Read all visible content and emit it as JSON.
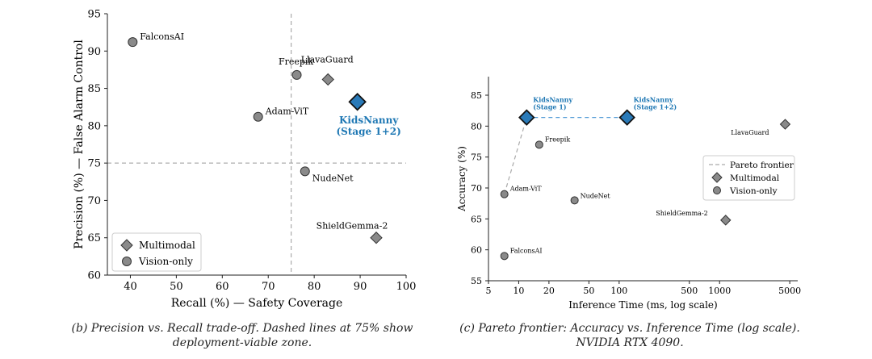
{
  "colors": {
    "multimodal": "#8a8a8a",
    "vision_only": "#8a8a8a",
    "highlight": "#2a7ab8",
    "highlight_text": "#1f78b4",
    "axis": "#222222",
    "refline": "#999999",
    "pareto": "#aaaaaa",
    "pareto_highlight": "#5aa0d8"
  },
  "captions": {
    "b": "(b) Precision vs. Recall trade-off. Dashed lines at 75% show deployment-viable zone.",
    "c": "(c) Pareto frontier: Accuracy vs. Inference Time (log scale). NVIDIA RTX 4090."
  },
  "chart_data": [
    {
      "type": "scatter",
      "id": "b",
      "xlabel": "Recall (%) — Safety Coverage",
      "ylabel": "Precision (%) — False Alarm Control",
      "xlim": [
        35,
        100
      ],
      "ylim": [
        60,
        95
      ],
      "xticks": [
        40,
        50,
        60,
        70,
        80,
        90,
        100
      ],
      "yticks": [
        60,
        65,
        70,
        75,
        80,
        85,
        90,
        95
      ],
      "ref_lines": {
        "x": 75,
        "y": 75
      },
      "legend": {
        "position": "bottom-left",
        "entries": [
          {
            "label": "Multimodal",
            "marker": "diamond"
          },
          {
            "label": "Vision-only",
            "marker": "circle"
          }
        ]
      },
      "points": [
        {
          "label": "FalconsAI",
          "x": 40.5,
          "y": 91.2,
          "marker": "circle"
        },
        {
          "label": "Freepik",
          "x": 76.2,
          "y": 86.8,
          "marker": "circle"
        },
        {
          "label": "LlavaGuard",
          "x": 83.0,
          "y": 86.2,
          "marker": "diamond"
        },
        {
          "label": "Adam-ViT",
          "x": 67.8,
          "y": 81.2,
          "marker": "circle"
        },
        {
          "label": "KidsNanny (Stage 1+2)",
          "label_lines": [
            "KidsNanny",
            "(Stage 1+2)"
          ],
          "x": 89.4,
          "y": 83.2,
          "marker": "diamond",
          "highlight": true
        },
        {
          "label": "NudeNet",
          "x": 78.0,
          "y": 73.9,
          "marker": "circle"
        },
        {
          "label": "ShieldGemma-2",
          "x": 93.5,
          "y": 65.0,
          "marker": "diamond"
        }
      ]
    },
    {
      "type": "scatter",
      "id": "c",
      "xlabel": "Inference Time (ms, log scale)",
      "ylabel": "Accuracy (%)",
      "xscale": "log",
      "xlim": [
        5,
        6000
      ],
      "ylim": [
        55,
        88
      ],
      "xticks": [
        5,
        10,
        20,
        50,
        100,
        500,
        1000,
        5000
      ],
      "yticks": [
        55,
        60,
        65,
        70,
        75,
        80,
        85
      ],
      "legend": {
        "position": "center-right",
        "entries": [
          {
            "label": "Pareto frontier",
            "marker": "dashed-line"
          },
          {
            "label": "Multimodal",
            "marker": "diamond"
          },
          {
            "label": "Vision-only",
            "marker": "circle"
          }
        ]
      },
      "pareto_frontier": [
        {
          "x": 7.2,
          "y": 69.0
        },
        {
          "x": 12.0,
          "y": 81.4
        },
        {
          "x": 120,
          "y": 81.4
        }
      ],
      "points": [
        {
          "label": "KidsNanny (Stage 1)",
          "label_lines": [
            "KidsNanny",
            "(Stage 1)"
          ],
          "x": 12.0,
          "y": 81.4,
          "marker": "diamond",
          "highlight": true
        },
        {
          "label": "KidsNanny (Stage 1+2)",
          "label_lines": [
            "KidsNanny",
            "(Stage 1+2)"
          ],
          "x": 120,
          "y": 81.4,
          "marker": "diamond",
          "highlight": true
        },
        {
          "label": "LlavaGuard",
          "x": 4500,
          "y": 80.3,
          "marker": "diamond"
        },
        {
          "label": "Freepik",
          "x": 16,
          "y": 77.0,
          "marker": "circle"
        },
        {
          "label": "Adam-ViT",
          "x": 7.2,
          "y": 69.0,
          "marker": "circle"
        },
        {
          "label": "NudeNet",
          "x": 36,
          "y": 68.0,
          "marker": "circle"
        },
        {
          "label": "ShieldGemma-2",
          "x": 1150,
          "y": 64.8,
          "marker": "diamond"
        },
        {
          "label": "FalconsAI",
          "x": 7.2,
          "y": 59.0,
          "marker": "circle"
        }
      ]
    }
  ]
}
